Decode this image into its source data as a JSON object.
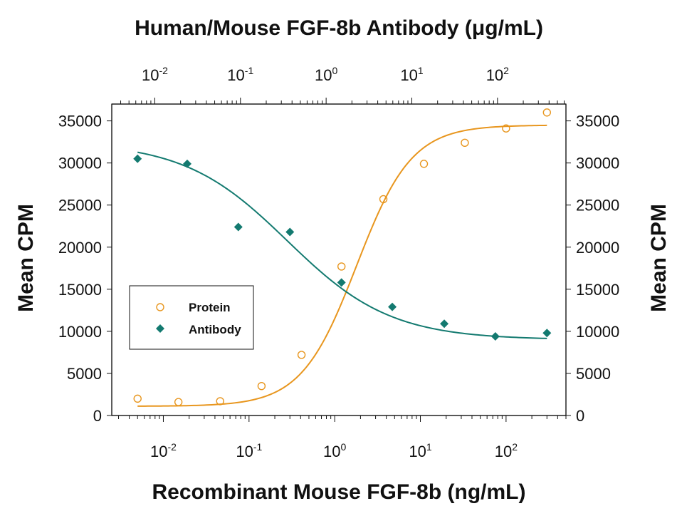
{
  "chart_data": {
    "type": "scatter",
    "title": "Human/Mouse FGF-8b Antibody (μg/mL)",
    "xlabel": "Recombinant Mouse FGF-8b (ng/mL)",
    "ylabel_left": "Mean CPM",
    "ylabel_right": "Mean CPM",
    "xscale": "log",
    "xlim": [
      0.0025,
      500
    ],
    "ylim": [
      0,
      37000
    ],
    "y_ticks": [
      "0",
      "5000",
      "10000",
      "15000",
      "20000",
      "25000",
      "30000",
      "35000"
    ],
    "y_tick_values": [
      0,
      5000,
      10000,
      15000,
      20000,
      25000,
      30000,
      35000
    ],
    "x_ticks_bottom": [
      {
        "base": "10",
        "exp": "-2",
        "value": 0.01
      },
      {
        "base": "10",
        "exp": "-1",
        "value": 0.1
      },
      {
        "base": "10",
        "exp": "0",
        "value": 1
      },
      {
        "base": "10",
        "exp": "1",
        "value": 10
      },
      {
        "base": "10",
        "exp": "2",
        "value": 100
      }
    ],
    "x_ticks_top": [
      {
        "base": "10",
        "exp": "-2",
        "value": 0.01
      },
      {
        "base": "10",
        "exp": "-1",
        "value": 0.1
      },
      {
        "base": "10",
        "exp": "0",
        "value": 1
      },
      {
        "base": "10",
        "exp": "1",
        "value": 10
      },
      {
        "base": "10",
        "exp": "2",
        "value": 100
      }
    ],
    "top_axis_offset_decades": -0.1,
    "grid": false,
    "legend_position": "left-middle",
    "series": [
      {
        "name": "Protein",
        "marker": "open-circle",
        "color": "#E8961E",
        "points": [
          {
            "x": 0.005,
            "y": 2000
          },
          {
            "x": 0.015,
            "y": 1600
          },
          {
            "x": 0.046,
            "y": 1700
          },
          {
            "x": 0.14,
            "y": 3500
          },
          {
            "x": 0.41,
            "y": 7200
          },
          {
            "x": 1.2,
            "y": 17700
          },
          {
            "x": 3.7,
            "y": 25700
          },
          {
            "x": 11,
            "y": 29900
          },
          {
            "x": 33,
            "y": 32400
          },
          {
            "x": 100,
            "y": 34100
          },
          {
            "x": 300,
            "y": 36000
          }
        ],
        "fit": {
          "bottom": 1100,
          "top": 34500,
          "ec50": 1.8,
          "hill": 1.35
        }
      },
      {
        "name": "Antibody",
        "marker": "filled-diamond",
        "color": "#137A70",
        "points": [
          {
            "x": 0.005,
            "y": 30500
          },
          {
            "x": 0.019,
            "y": 29900
          },
          {
            "x": 0.075,
            "y": 22400
          },
          {
            "x": 0.3,
            "y": 21800
          },
          {
            "x": 1.2,
            "y": 15800
          },
          {
            "x": 4.7,
            "y": 12900
          },
          {
            "x": 19,
            "y": 10900
          },
          {
            "x": 75,
            "y": 9400
          },
          {
            "x": 300,
            "y": 9800
          }
        ],
        "fit": {
          "bottom": 9000,
          "top": 32500,
          "ec50": 0.28,
          "hill": -0.72
        }
      }
    ]
  }
}
